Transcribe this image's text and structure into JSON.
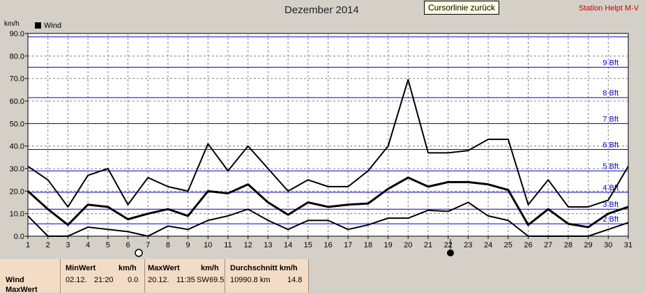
{
  "header": {
    "title": "Dezember 2014",
    "cursor_button": "Cursorlinie zurück",
    "station": "Station Helpt M-V",
    "unit": "km/h",
    "legend_label": "Wind"
  },
  "chart_data": {
    "type": "line",
    "title": "Dezember 2014",
    "ylabel": "km/h",
    "xlabel": "",
    "ylim": [
      0,
      90
    ],
    "x": [
      1,
      2,
      3,
      4,
      5,
      6,
      7,
      8,
      9,
      10,
      11,
      12,
      13,
      14,
      15,
      16,
      17,
      18,
      19,
      20,
      21,
      22,
      23,
      24,
      25,
      26,
      27,
      28,
      29,
      30,
      31
    ],
    "y_ticks": [
      "0.0",
      "10.0",
      "20.0",
      "30.0",
      "40.0",
      "50.0",
      "60.0",
      "70.0",
      "80.0",
      "90.0"
    ],
    "grid": true,
    "legend": "top-left",
    "series": [
      {
        "name": "Wind",
        "role": "max",
        "values": [
          31,
          25,
          13,
          27,
          30,
          14,
          26,
          22,
          20,
          41,
          29,
          40,
          30,
          20,
          25,
          22,
          22,
          29,
          40,
          69.5,
          37,
          37,
          38,
          43,
          43,
          14,
          25,
          13,
          13,
          16,
          31
        ]
      },
      {
        "name": "Wind",
        "role": "avg",
        "values": [
          20,
          12,
          5,
          14,
          13,
          7.5,
          10,
          12,
          9,
          20,
          19,
          23,
          15,
          9.5,
          15,
          13,
          14,
          14.5,
          21,
          26,
          22,
          24,
          24,
          23,
          20.5,
          5,
          12,
          5.5,
          4,
          10,
          13
        ]
      },
      {
        "name": "Wind",
        "role": "min",
        "values": [
          9,
          0,
          0,
          4,
          3,
          2,
          0,
          4.5,
          3,
          7,
          9,
          12,
          7,
          3,
          7,
          7,
          3,
          5,
          8,
          8,
          11.5,
          11,
          15,
          9,
          7,
          0,
          0,
          0,
          0,
          3,
          6
        ]
      }
    ],
    "beaufort_levels": [
      {
        "label": "2 Bft",
        "value": 5.5
      },
      {
        "label": "3 Bft",
        "value": 12
      },
      {
        "label": "4 Bft",
        "value": 19.5
      },
      {
        "label": "5 Bft",
        "value": 29
      },
      {
        "label": "6 Bft",
        "value": 38.5
      },
      {
        "label": "7 Bft",
        "value": 50
      },
      {
        "label": "8 Bft",
        "value": 61.5
      },
      {
        "label": "9 Bft",
        "value": 75
      },
      {
        "label": "",
        "value": 88.5
      }
    ],
    "colors": {
      "series": "#000000",
      "beaufort": "#0000cc",
      "grid": "#808080",
      "plot_bg": "#ffffff",
      "window_bg": "#d4d0c8"
    }
  },
  "footer": {
    "row_labels": [
      "Wind",
      "MaxWert"
    ],
    "min": {
      "title": "MinWert",
      "unit": "km/h",
      "date": "02.12.",
      "time": "21:20",
      "value": "0.0"
    },
    "max": {
      "title": "MaxWert",
      "unit": "km/h",
      "date": "20.12.",
      "time": "11:35",
      "dir": "SW",
      "value": "69.5"
    },
    "avg": {
      "title": "Durchschnitt km/h",
      "distance": "10990.8 km",
      "value": "14.8"
    }
  }
}
